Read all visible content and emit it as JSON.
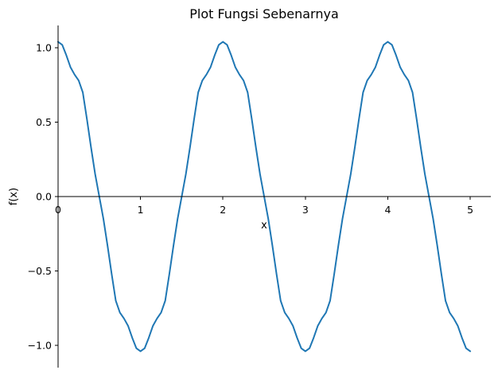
{
  "chart_data": {
    "type": "line",
    "title": "Plot Fungsi Sebenarnya",
    "xlabel": "x",
    "ylabel": "f(x)",
    "xlim": [
      0,
      5.25
    ],
    "ylim": [
      -1.15,
      1.15
    ],
    "x_ticks": [
      0,
      1,
      2,
      3,
      4,
      5
    ],
    "x_tick_labels": [
      "0",
      "1",
      "2",
      "3",
      "4",
      "5"
    ],
    "y_ticks": [
      -1.0,
      -0.5,
      0.0,
      0.5,
      1.0
    ],
    "y_tick_labels": [
      "−1.0",
      "−0.5",
      "0.0",
      "0.5",
      "1.0"
    ],
    "grid": false,
    "legend": "none",
    "series": [
      {
        "color": "#1f77b4",
        "x": [
          0,
          0.05,
          0.1,
          0.15,
          0.2,
          0.25,
          0.3,
          0.35,
          0.4,
          0.45,
          0.5,
          0.55,
          0.6,
          0.65,
          0.7,
          0.75,
          0.8,
          0.85,
          0.9,
          0.95,
          1.0,
          1.05,
          1.1,
          1.15,
          1.2,
          1.25,
          1.3,
          1.35,
          1.4,
          1.45,
          1.5,
          1.55,
          1.6,
          1.65,
          1.7,
          1.75,
          1.8,
          1.85,
          1.9,
          1.95,
          2.0,
          2.05,
          2.1,
          2.15,
          2.2,
          2.25,
          2.3,
          2.35,
          2.4,
          2.45,
          2.5,
          2.55,
          2.6,
          2.65,
          2.7,
          2.75,
          2.8,
          2.85,
          2.9,
          2.95,
          3.0,
          3.05,
          3.1,
          3.15,
          3.2,
          3.25,
          3.3,
          3.35,
          3.4,
          3.45,
          3.5,
          3.55,
          3.6,
          3.65,
          3.7,
          3.75,
          3.8,
          3.85,
          3.9,
          3.95,
          4.0,
          4.05,
          4.1,
          4.15,
          4.2,
          4.25,
          4.3,
          4.35,
          4.4,
          4.45,
          4.5,
          4.55,
          4.6,
          4.65,
          4.7,
          4.75,
          4.8,
          4.85,
          4.9,
          4.95,
          5.0
        ],
        "y": [
          1.04,
          1.02,
          0.95,
          0.87,
          0.82,
          0.78,
          0.7,
          0.52,
          0.33,
          0.15,
          0.0,
          -0.15,
          -0.33,
          -0.52,
          -0.7,
          -0.78,
          -0.82,
          -0.87,
          -0.95,
          -1.02,
          -1.04,
          -1.02,
          -0.95,
          -0.87,
          -0.82,
          -0.78,
          -0.7,
          -0.52,
          -0.33,
          -0.15,
          0.0,
          0.15,
          0.33,
          0.52,
          0.7,
          0.78,
          0.82,
          0.87,
          0.95,
          1.02,
          1.04,
          1.02,
          0.95,
          0.87,
          0.82,
          0.78,
          0.7,
          0.52,
          0.33,
          0.15,
          0.0,
          -0.15,
          -0.33,
          -0.52,
          -0.7,
          -0.78,
          -0.82,
          -0.87,
          -0.95,
          -1.02,
          -1.04,
          -1.02,
          -0.95,
          -0.87,
          -0.82,
          -0.78,
          -0.7,
          -0.52,
          -0.33,
          -0.15,
          0.0,
          0.15,
          0.33,
          0.52,
          0.7,
          0.78,
          0.82,
          0.87,
          0.95,
          1.02,
          1.04,
          1.02,
          0.95,
          0.87,
          0.82,
          0.78,
          0.7,
          0.52,
          0.33,
          0.15,
          0.0,
          -0.15,
          -0.33,
          -0.52,
          -0.7,
          -0.78,
          -0.82,
          -0.87,
          -0.95,
          -1.02,
          -1.04
        ]
      }
    ]
  }
}
